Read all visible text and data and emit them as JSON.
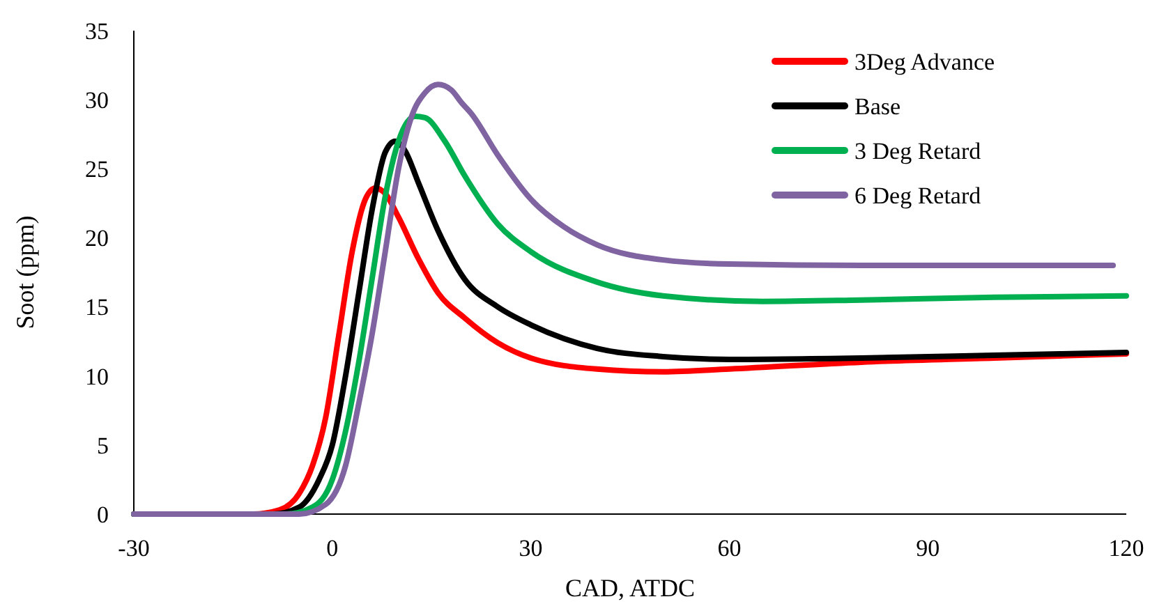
{
  "chart_data": {
    "type": "line",
    "xlabel": "CAD, ATDC",
    "ylabel": "Soot (ppm)",
    "xlim": [
      -30,
      120
    ],
    "xticks": [
      -30,
      0,
      30,
      60,
      90,
      120
    ],
    "ylim": [
      0,
      35
    ],
    "yticks": [
      0,
      5,
      10,
      15,
      20,
      25,
      30,
      35
    ],
    "grid": false,
    "legend": "top right",
    "marker": "none",
    "line_style": "solid",
    "series": [
      {
        "name": "3Deg Advance",
        "color": "#ff0000",
        "x": [
          -30,
          -12,
          -8,
          -5,
          -3,
          -1,
          1,
          3,
          5,
          6.5,
          8,
          10,
          13,
          16,
          20,
          25,
          30,
          40,
          50,
          60,
          80,
          100,
          120
        ],
        "values": [
          0,
          0,
          0.3,
          1.5,
          3.5,
          7,
          13,
          19,
          22.8,
          23.6,
          23.2,
          21.5,
          18.5,
          16,
          14.2,
          12.4,
          11.3,
          10.5,
          10.3,
          10.5,
          11,
          11.3,
          11.6
        ]
      },
      {
        "name": "Base",
        "color": "#000000",
        "x": [
          -30,
          -9,
          -5,
          -2,
          0,
          2,
          4,
          6,
          8,
          9.5,
          11,
          13,
          16,
          20,
          25,
          30,
          40,
          50,
          60,
          80,
          100,
          120
        ],
        "values": [
          0,
          0,
          0.5,
          2.5,
          5,
          10,
          16,
          22,
          26.2,
          27,
          26.3,
          24,
          20.5,
          17,
          15,
          13.7,
          12,
          11.4,
          11.2,
          11.3,
          11.5,
          11.7
        ]
      },
      {
        "name": "3 Deg Retard",
        "color": "#00b050",
        "x": [
          -30,
          -7,
          -3,
          0,
          2,
          4,
          6,
          8,
          10,
          12.5,
          14,
          17,
          20,
          25,
          30,
          40,
          50,
          65,
          80,
          100,
          120
        ],
        "values": [
          0,
          0,
          0.5,
          2.5,
          6,
          11,
          17,
          23,
          27,
          28.8,
          28.7,
          27,
          24.5,
          21,
          19,
          16.8,
          15.8,
          15.4,
          15.5,
          15.7,
          15.8
        ]
      },
      {
        "name": "6 Deg Retard",
        "color": "#8064a2",
        "x": [
          -30,
          -5,
          -1,
          2,
          4,
          6,
          8,
          10,
          12,
          14,
          16,
          18,
          19.5,
          21,
          25,
          30,
          35,
          40,
          50,
          60,
          80,
          100,
          118
        ],
        "values": [
          0,
          0,
          0.7,
          3.5,
          8,
          13,
          19,
          25,
          28.8,
          30.5,
          31.1,
          30.7,
          29.8,
          29,
          26,
          22.8,
          20.8,
          19.5,
          18.4,
          18.1,
          18,
          18,
          18
        ]
      }
    ]
  }
}
